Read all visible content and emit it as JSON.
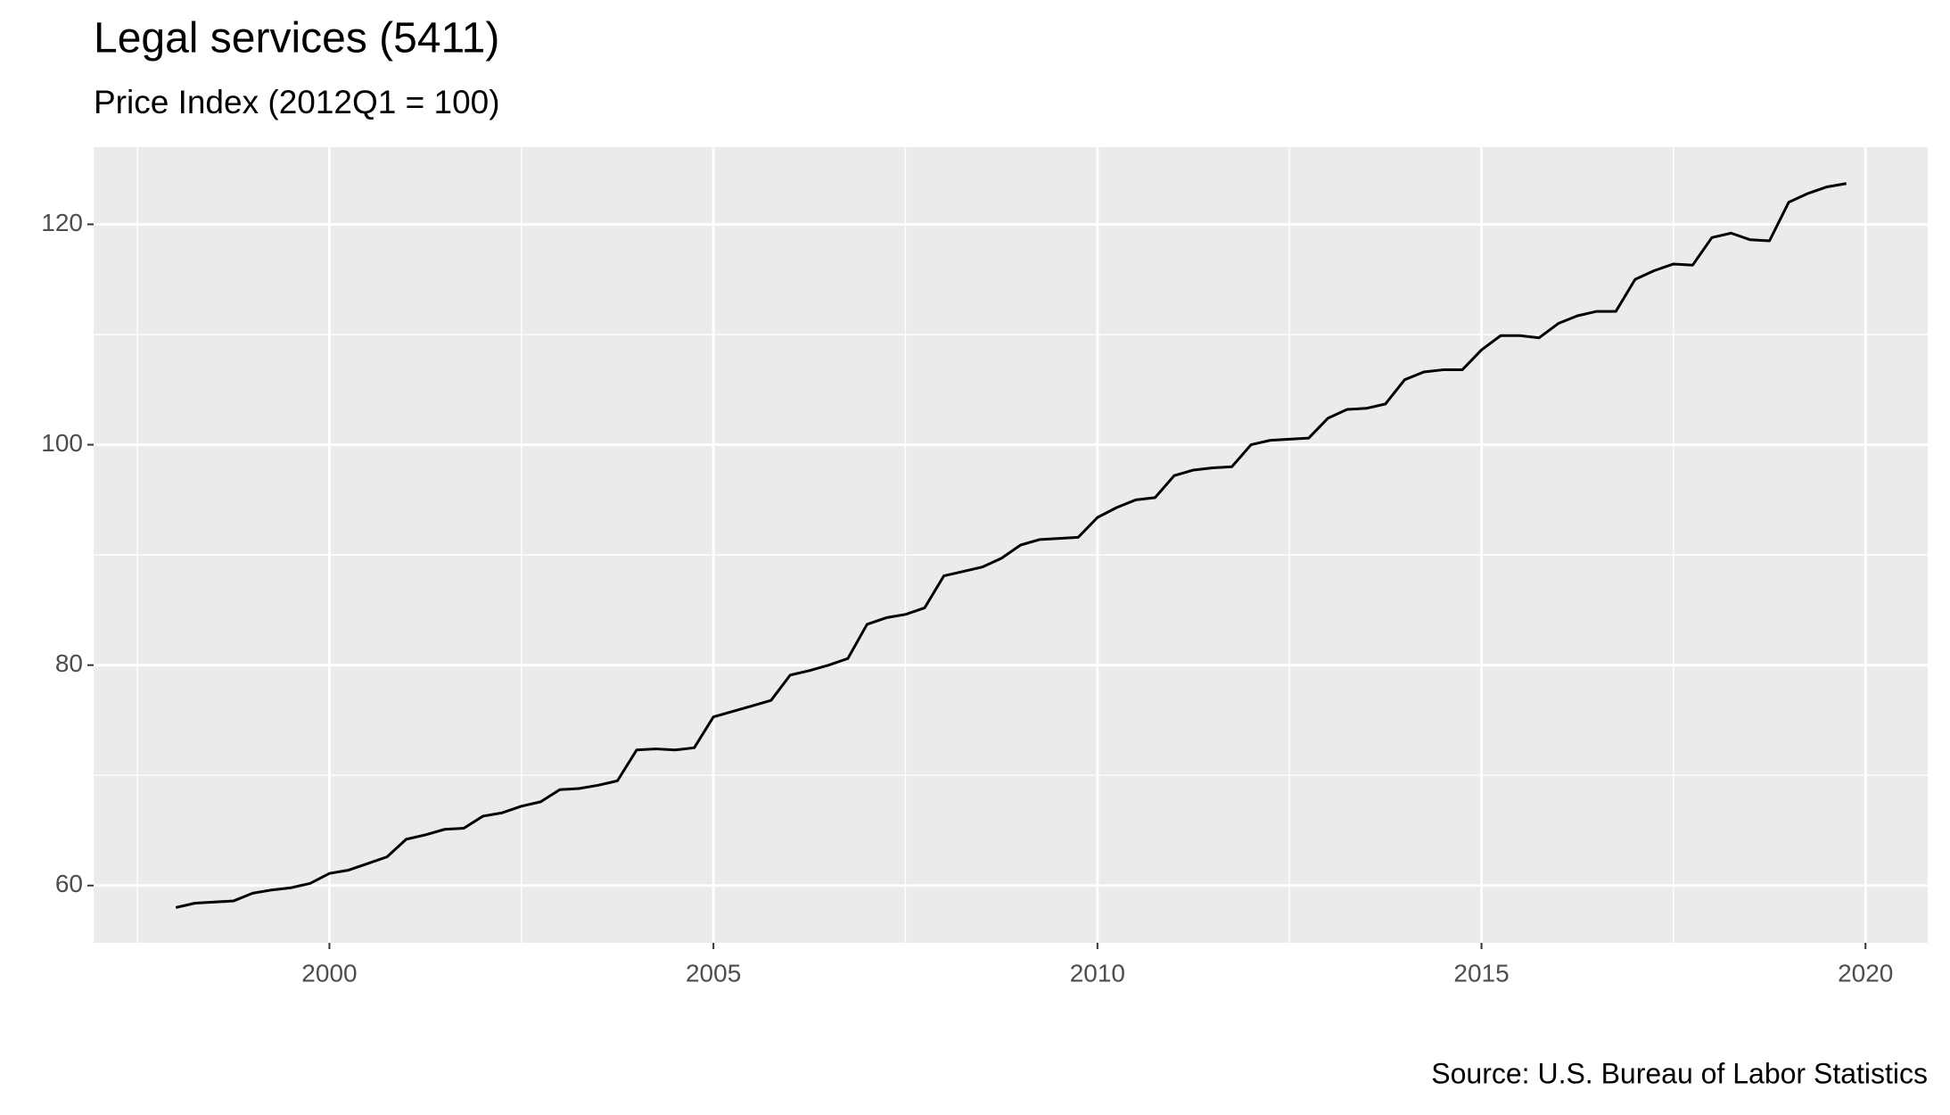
{
  "chart_data": {
    "type": "line",
    "title": "Legal services (5411)",
    "subtitle": "Price Index (2012Q1 = 100)",
    "caption": "Source: U.S. Bureau of Labor Statistics",
    "x": [
      1998,
      1998.25,
      1998.5,
      1998.75,
      1999,
      1999.25,
      1999.5,
      1999.75,
      2000,
      2000.25,
      2000.5,
      2000.75,
      2001,
      2001.25,
      2001.5,
      2001.75,
      2002,
      2002.25,
      2002.5,
      2002.75,
      2003,
      2003.25,
      2003.5,
      2003.75,
      2004,
      2004.25,
      2004.5,
      2004.75,
      2005,
      2005.25,
      2005.5,
      2005.75,
      2006,
      2006.25,
      2006.5,
      2006.75,
      2007,
      2007.25,
      2007.5,
      2007.75,
      2008,
      2008.25,
      2008.5,
      2008.75,
      2009,
      2009.25,
      2009.5,
      2009.75,
      2010,
      2010.25,
      2010.5,
      2010.75,
      2011,
      2011.25,
      2011.5,
      2011.75,
      2012,
      2012.25,
      2012.5,
      2012.75,
      2013,
      2013.25,
      2013.5,
      2013.75,
      2014,
      2014.25,
      2014.5,
      2014.75,
      2015,
      2015.25,
      2015.5,
      2015.75,
      2016,
      2016.25,
      2016.5,
      2016.75,
      2017,
      2017.25,
      2017.5,
      2017.75,
      2018,
      2018.25,
      2018.5,
      2018.75,
      2019,
      2019.25,
      2019.5,
      2019.75
    ],
    "values": [
      58.0,
      58.4,
      58.5,
      58.6,
      59.3,
      59.6,
      59.8,
      60.2,
      61.1,
      61.4,
      62.0,
      62.6,
      64.2,
      64.6,
      65.1,
      65.2,
      66.3,
      66.6,
      67.2,
      67.6,
      68.7,
      68.8,
      69.1,
      69.5,
      72.3,
      72.4,
      72.3,
      72.5,
      75.3,
      75.8,
      76.3,
      76.8,
      79.1,
      79.5,
      80.0,
      80.6,
      83.7,
      84.3,
      84.6,
      85.2,
      88.1,
      88.5,
      88.9,
      89.7,
      90.9,
      91.4,
      91.5,
      91.6,
      93.4,
      94.3,
      95.0,
      95.2,
      97.2,
      97.7,
      97.9,
      98.0,
      100.0,
      100.4,
      100.5,
      100.6,
      102.4,
      103.2,
      103.3,
      103.7,
      105.9,
      106.6,
      106.8,
      106.8,
      108.6,
      109.9,
      109.9,
      109.7,
      111.0,
      111.7,
      112.1,
      112.1,
      115.0,
      115.8,
      116.4,
      116.3,
      118.8,
      119.2,
      118.6,
      118.5,
      122.0,
      122.8,
      123.4,
      123.7
    ],
    "color": "#000000",
    "xlim": [
      1996.93,
      2020.81
    ],
    "ylim": [
      54.8,
      127.0
    ],
    "xticks": [
      2000,
      2005,
      2010,
      2015,
      2020
    ],
    "yticks": [
      60,
      80,
      100,
      120
    ],
    "xminor": [
      1997.5,
      2002.5,
      2007.5,
      2012.5,
      2017.5
    ],
    "yminor": [
      70,
      90,
      110
    ],
    "grid": true
  }
}
